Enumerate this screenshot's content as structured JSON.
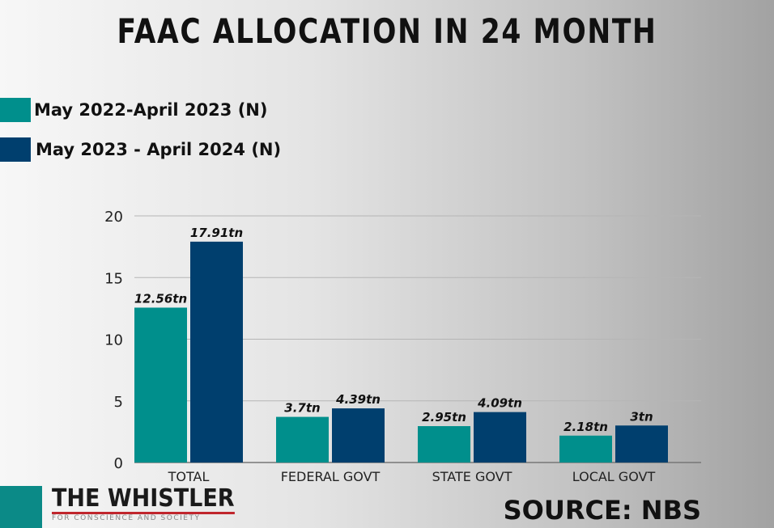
{
  "chart_data": {
    "type": "bar",
    "title": "FAAC ALLOCATION IN 24 MONTH",
    "categories": [
      "TOTAL",
      "FEDERAL GOVT",
      "STATE GOVT",
      "LOCAL GOVT"
    ],
    "series": [
      {
        "name": "May 2022-April 2023 (N)",
        "color": "#008f8c",
        "values": [
          12.56,
          3.7,
          2.95,
          2.18
        ],
        "labels": [
          "12.56tn",
          "3.7tn",
          "2.95tn",
          "2.18tn"
        ]
      },
      {
        "name": "May 2023 - April 2024 (N)",
        "color": "#003f6e",
        "values": [
          17.91,
          4.39,
          4.09,
          3
        ],
        "labels": [
          "17.91tn",
          "4.39tn",
          "4.09tn",
          "3tn"
        ]
      }
    ],
    "ylim": [
      0,
      20
    ],
    "yticks": [
      0,
      5,
      10,
      15,
      20
    ],
    "grid": true,
    "legend_position": "top-left"
  },
  "branding": {
    "logo_name": "THE WHISTLER",
    "logo_tagline": "FOR CONSCIENCE AND SOCIETY"
  },
  "source": "SOURCE: NBS"
}
